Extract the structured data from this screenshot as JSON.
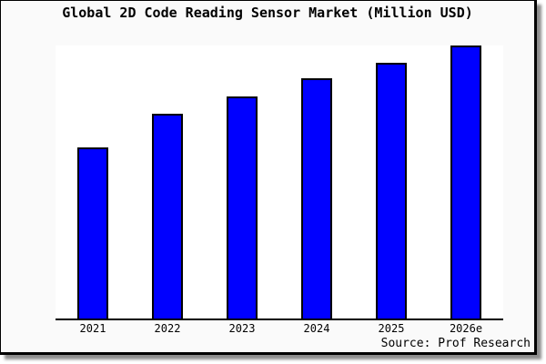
{
  "header": {
    "title": "Global 2D Code Reading Sensor Market (Million USD)"
  },
  "footer": {
    "source": "Source: Prof Research"
  },
  "chart_data": {
    "type": "bar",
    "title": "Global 2D Code Reading Sensor Market (Million USD)",
    "categories": [
      "2021",
      "2022",
      "2023",
      "2024",
      "2025",
      "2026e"
    ],
    "values": [
      62.8,
      75.1,
      81.5,
      87.9,
      93.6,
      100
    ],
    "values_unit": "relative height, tallest bar (2026e) = 100; y-axis is unlabeled in the figure",
    "xlabel": "",
    "ylabel": "",
    "ylim": [
      0,
      100
    ],
    "grid": false,
    "legend": false,
    "source": "Source: Prof Research",
    "colors": {
      "bar_fill": "#0000ff",
      "bar_edge": "#000000",
      "axis": "#000000",
      "plot_background": "#ffffff",
      "canvas_background": "#fafafa",
      "frame_border": "#000000"
    }
  }
}
